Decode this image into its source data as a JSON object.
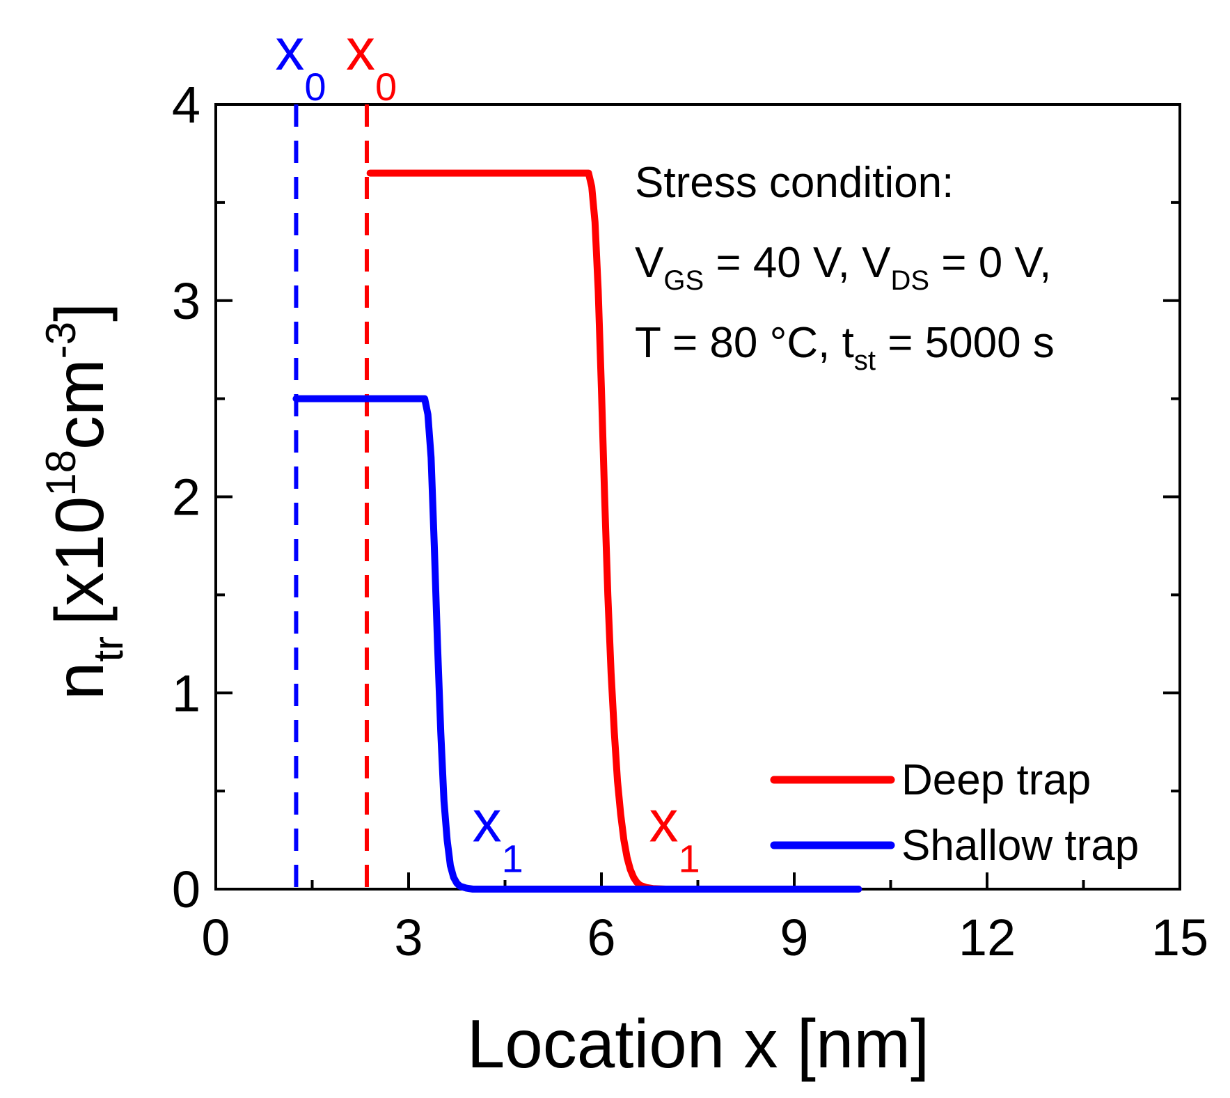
{
  "chart_data": {
    "type": "line",
    "xlabel": "Location x [nm]",
    "ylabel": {
      "main": "n",
      "sub": "tr",
      "bracket_open": "[x10",
      "exp": "18",
      "unit": "cm",
      "unit_exp": "-3",
      "bracket_close": "]"
    },
    "xlim": [
      0,
      15
    ],
    "ylim": [
      0,
      4
    ],
    "x_ticks": [
      0,
      3,
      6,
      9,
      12,
      15
    ],
    "y_ticks": [
      0,
      1,
      2,
      3,
      4
    ],
    "x_tick_labels": [
      "0",
      "3",
      "6",
      "9",
      "12",
      "15"
    ],
    "y_tick_labels": [
      "0",
      "1",
      "2",
      "3",
      "4"
    ],
    "x_minor_step": 1.5,
    "y_minor_step": 0.5,
    "grid": false,
    "legend_position": "bottom-right",
    "series": [
      {
        "name": "Deep trap",
        "color": "#ff0000",
        "x": [
          2.4,
          5.8,
          5.85,
          5.9,
          5.95,
          6.0,
          6.05,
          6.1,
          6.15,
          6.2,
          6.25,
          6.3,
          6.35,
          6.4,
          6.45,
          6.5,
          6.55,
          6.6,
          6.7,
          6.8,
          7.0,
          10.0
        ],
        "y": [
          3.65,
          3.65,
          3.58,
          3.4,
          3.05,
          2.55,
          2.0,
          1.5,
          1.1,
          0.8,
          0.55,
          0.38,
          0.25,
          0.16,
          0.1,
          0.06,
          0.035,
          0.02,
          0.008,
          0.003,
          0.0,
          0.0
        ]
      },
      {
        "name": "Shallow trap",
        "color": "#0000ff",
        "x": [
          1.25,
          3.25,
          3.3,
          3.35,
          3.4,
          3.45,
          3.5,
          3.55,
          3.6,
          3.65,
          3.7,
          3.75,
          3.8,
          3.9,
          4.0,
          10.0
        ],
        "y": [
          2.5,
          2.5,
          2.42,
          2.2,
          1.75,
          1.25,
          0.8,
          0.45,
          0.25,
          0.12,
          0.06,
          0.03,
          0.015,
          0.005,
          0.0,
          0.0
        ]
      }
    ],
    "vertical_lines": [
      {
        "x": 1.25,
        "color": "#0000ff",
        "style": "dashed"
      },
      {
        "x": 2.35,
        "color": "#ff0000",
        "style": "dashed"
      }
    ],
    "markers": [
      {
        "text": "x",
        "sub": "0",
        "color": "#0000ff",
        "at_x": 1.25,
        "placement": "above-plot"
      },
      {
        "text": "x",
        "sub": "0",
        "color": "#ff0000",
        "at_x": 2.35,
        "placement": "above-plot"
      },
      {
        "text": "x",
        "sub": "1",
        "color": "#0000ff",
        "at_x": 4.1,
        "at_y": 0.35
      },
      {
        "text": "x",
        "sub": "1",
        "color": "#ff0000",
        "at_x": 6.85,
        "at_y": 0.35
      }
    ],
    "annotation": {
      "line1": "Stress condition:",
      "line2": {
        "v1": "V",
        "v1_sub": "GS",
        "eq1": " = 40 V, ",
        "v2": "V",
        "v2_sub": "DS",
        "eq2": " = 0 V,"
      },
      "line3": {
        "t": "T = 80 ",
        "degree": "°",
        "unit": "C, t",
        "t_sub": "st",
        "rest": " = 5000 s"
      }
    }
  }
}
